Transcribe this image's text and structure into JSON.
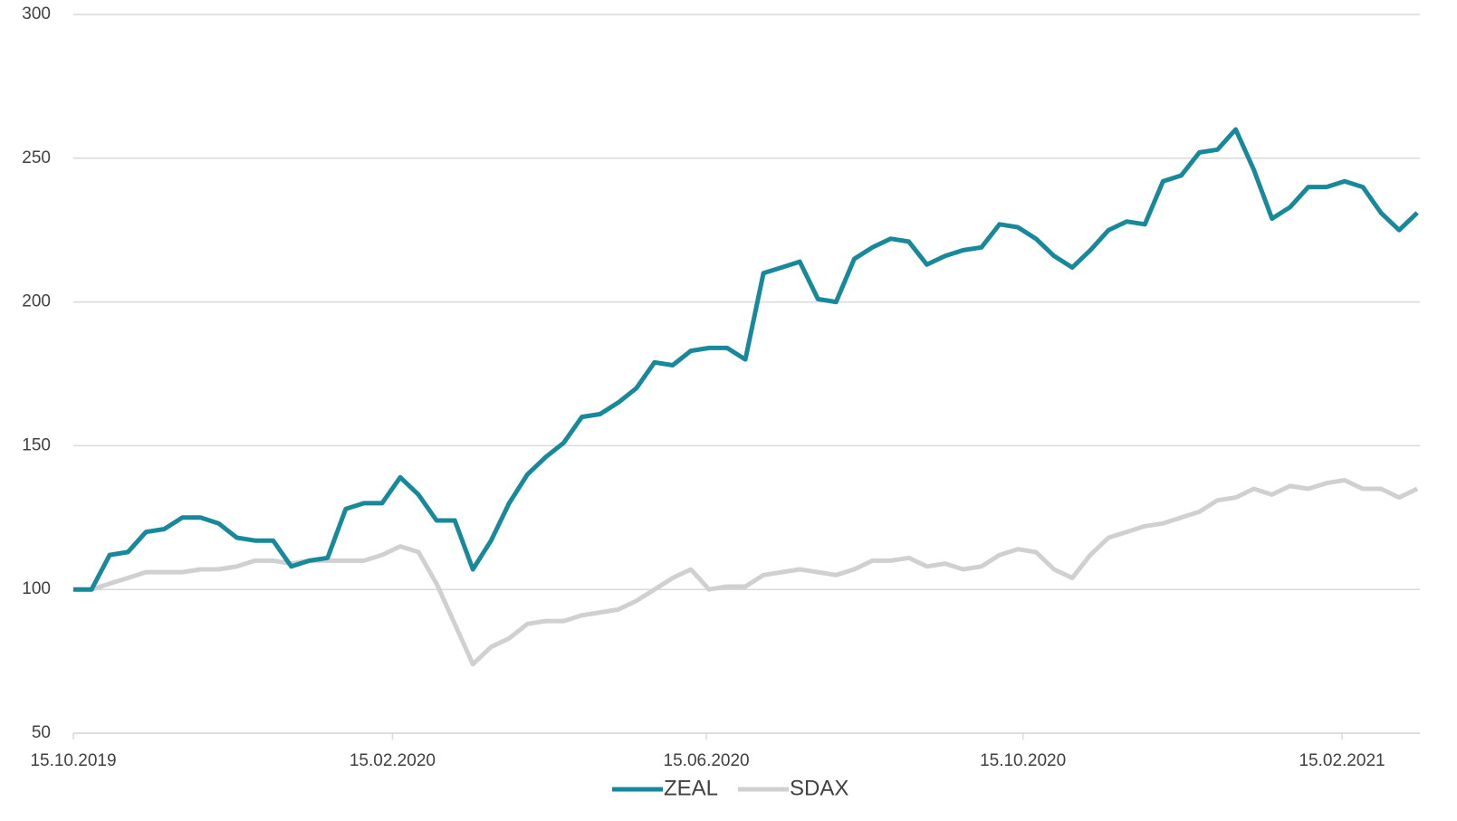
{
  "chart_data": {
    "type": "line",
    "x": [
      "15.10.2019",
      "22.10.2019",
      "29.10.2019",
      "05.11.2019",
      "12.11.2019",
      "19.11.2019",
      "26.11.2019",
      "03.12.2019",
      "10.12.2019",
      "17.12.2019",
      "24.12.2019",
      "31.12.2019",
      "07.01.2020",
      "14.01.2020",
      "21.01.2020",
      "28.01.2020",
      "04.02.2020",
      "11.02.2020",
      "18.02.2020",
      "25.02.2020",
      "03.03.2020",
      "10.03.2020",
      "17.03.2020",
      "24.03.2020",
      "31.03.2020",
      "07.04.2020",
      "14.04.2020",
      "21.04.2020",
      "28.04.2020",
      "05.05.2020",
      "12.05.2020",
      "19.05.2020",
      "26.05.2020",
      "02.06.2020",
      "09.06.2020",
      "16.06.2020",
      "23.06.2020",
      "30.06.2020",
      "07.07.2020",
      "14.07.2020",
      "21.07.2020",
      "28.07.2020",
      "04.08.2020",
      "11.08.2020",
      "18.08.2020",
      "25.08.2020",
      "01.09.2020",
      "08.09.2020",
      "15.09.2020",
      "22.09.2020",
      "29.09.2020",
      "06.10.2020",
      "13.10.2020",
      "20.10.2020",
      "27.10.2020",
      "03.11.2020",
      "10.11.2020",
      "17.11.2020",
      "24.11.2020",
      "01.12.2020",
      "08.12.2020",
      "15.12.2020",
      "22.12.2020",
      "29.12.2020",
      "05.01.2021",
      "12.01.2021",
      "19.01.2021",
      "26.01.2021",
      "02.02.2021",
      "09.02.2021",
      "16.02.2021",
      "23.02.2021",
      "02.03.2021",
      "09.03.2021",
      "16.03.2021"
    ],
    "series": [
      {
        "name": "ZEAL",
        "color": "#17899b",
        "values": [
          100,
          100,
          112,
          113,
          120,
          121,
          125,
          125,
          123,
          118,
          117,
          117,
          108,
          110,
          111,
          128,
          130,
          130,
          139,
          133,
          124,
          124,
          107,
          117,
          130,
          140,
          146,
          151,
          160,
          161,
          165,
          170,
          179,
          178,
          183,
          184,
          184,
          180,
          210,
          212,
          214,
          201,
          200,
          215,
          219,
          222,
          221,
          213,
          216,
          218,
          219,
          227,
          226,
          222,
          216,
          212,
          218,
          225,
          228,
          227,
          242,
          244,
          252,
          253,
          260,
          246,
          229,
          233,
          240,
          240,
          242,
          240,
          231,
          225,
          231
        ]
      },
      {
        "name": "SDAX",
        "color": "#d0d0d0",
        "values": [
          100,
          100,
          102,
          104,
          106,
          106,
          106,
          107,
          107,
          108,
          110,
          110,
          109,
          110,
          110,
          110,
          110,
          112,
          115,
          113,
          102,
          88,
          74,
          80,
          83,
          88,
          89,
          89,
          91,
          92,
          93,
          96,
          100,
          104,
          107,
          100,
          101,
          101,
          105,
          106,
          107,
          106,
          105,
          107,
          110,
          110,
          111,
          108,
          109,
          107,
          108,
          112,
          114,
          113,
          107,
          104,
          112,
          118,
          120,
          122,
          123,
          125,
          127,
          131,
          132,
          135,
          133,
          136,
          135,
          137,
          138,
          135,
          135,
          132,
          135
        ]
      }
    ],
    "xlim": [
      "15.10.2019",
      "17.03.2021"
    ],
    "xticks": [
      "15.10.2019",
      "15.02.2020",
      "15.06.2020",
      "15.10.2020",
      "15.02.2021"
    ],
    "ylim": [
      50,
      300
    ],
    "yticks": [
      50,
      100,
      150,
      200,
      250,
      300
    ],
    "grid": true,
    "legend": "bottom"
  }
}
